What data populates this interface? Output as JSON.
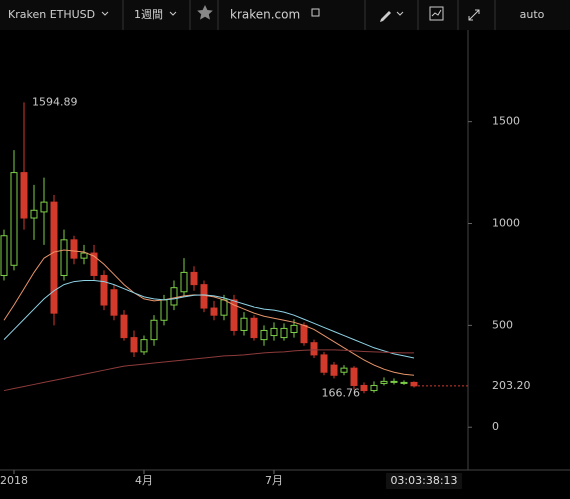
{
  "toolbar": {
    "symbol": "Kraken ETHUSD",
    "interval": "1週間",
    "site": "kraken.com",
    "scale": "auto"
  },
  "chart_data": {
    "type": "candlestick",
    "categories": [
      null,
      "2018",
      null,
      null,
      null,
      null,
      null,
      null,
      null,
      null,
      null,
      null,
      null,
      null,
      "4月",
      null,
      null,
      null,
      null,
      null,
      null,
      null,
      null,
      null,
      null,
      null,
      null,
      "7月",
      null,
      null,
      null,
      null,
      null,
      null,
      null,
      null,
      null,
      null,
      null,
      null,
      null,
      null
    ],
    "open": [
      745,
      795,
      1250,
      1027,
      1057,
      1105,
      745,
      920,
      830,
      855,
      745,
      675,
      550,
      440,
      370,
      430,
      525,
      600,
      665,
      760,
      700,
      585,
      550,
      625,
      475,
      535,
      430,
      450,
      440,
      465,
      500,
      415,
      355,
      305,
      270,
      290,
      205,
      180,
      215,
      220,
      215,
      220
    ],
    "high": [
      970,
      1360,
      1594.89,
      1190,
      1225,
      1140,
      970,
      940,
      895,
      895,
      770,
      700,
      575,
      475,
      450,
      550,
      650,
      720,
      830,
      790,
      720,
      620,
      650,
      650,
      565,
      550,
      500,
      515,
      510,
      530,
      515,
      430,
      370,
      320,
      305,
      300,
      220,
      225,
      245,
      240,
      230,
      225
    ],
    "low": [
      720,
      770,
      970,
      920,
      895,
      500,
      720,
      800,
      800,
      720,
      575,
      525,
      425,
      345,
      355,
      400,
      500,
      575,
      645,
      670,
      565,
      525,
      525,
      450,
      450,
      425,
      400,
      425,
      425,
      440,
      400,
      340,
      255,
      240,
      255,
      185,
      166.76,
      170,
      205,
      210,
      208,
      195
    ],
    "close": [
      940,
      1250,
      1027,
      1065,
      1105,
      560,
      920,
      830,
      855,
      745,
      600,
      550,
      440,
      370,
      430,
      525,
      625,
      685,
      760,
      700,
      585,
      550,
      625,
      475,
      535,
      440,
      475,
      485,
      485,
      500,
      415,
      355,
      270,
      255,
      290,
      205,
      180,
      205,
      225,
      225,
      220,
      203.2
    ],
    "up_color": "#7ccf48",
    "down_color": "#d23a2c",
    "series": [
      {
        "color": "#e8956a",
        "values": [
          525,
          600,
          680,
          760,
          830,
          860,
          870,
          865,
          860,
          840,
          800,
          750,
          700,
          660,
          630,
          620,
          625,
          635,
          645,
          650,
          648,
          640,
          625,
          600,
          580,
          560,
          545,
          535,
          525,
          515,
          500,
          480,
          450,
          420,
          390,
          360,
          330,
          305,
          285,
          270,
          260,
          255
        ]
      },
      {
        "color": "#8fd3e6",
        "values": [
          430,
          480,
          530,
          580,
          630,
          670,
          700,
          715,
          720,
          720,
          715,
          700,
          680,
          660,
          640,
          630,
          625,
          630,
          640,
          648,
          650,
          645,
          635,
          620,
          605,
          590,
          580,
          575,
          565,
          550,
          530,
          510,
          490,
          470,
          450,
          430,
          410,
          390,
          375,
          360,
          350,
          340
        ]
      },
      {
        "color": "#8e3b3b",
        "values": [
          180,
          190,
          200,
          210,
          220,
          230,
          240,
          250,
          260,
          270,
          280,
          290,
          300,
          305,
          310,
          315,
          320,
          325,
          330,
          335,
          340,
          345,
          350,
          352,
          355,
          360,
          365,
          368,
          370,
          375,
          378,
          380,
          380,
          380,
          378,
          375,
          372,
          370,
          368,
          366,
          365,
          365
        ]
      }
    ],
    "last_price": {
      "value": 203.2,
      "label": "203.20"
    },
    "countdown": "03:03:38:13",
    "ylim": [
      -210,
      1950
    ],
    "yticks": [
      0,
      500,
      1000,
      1500
    ]
  }
}
